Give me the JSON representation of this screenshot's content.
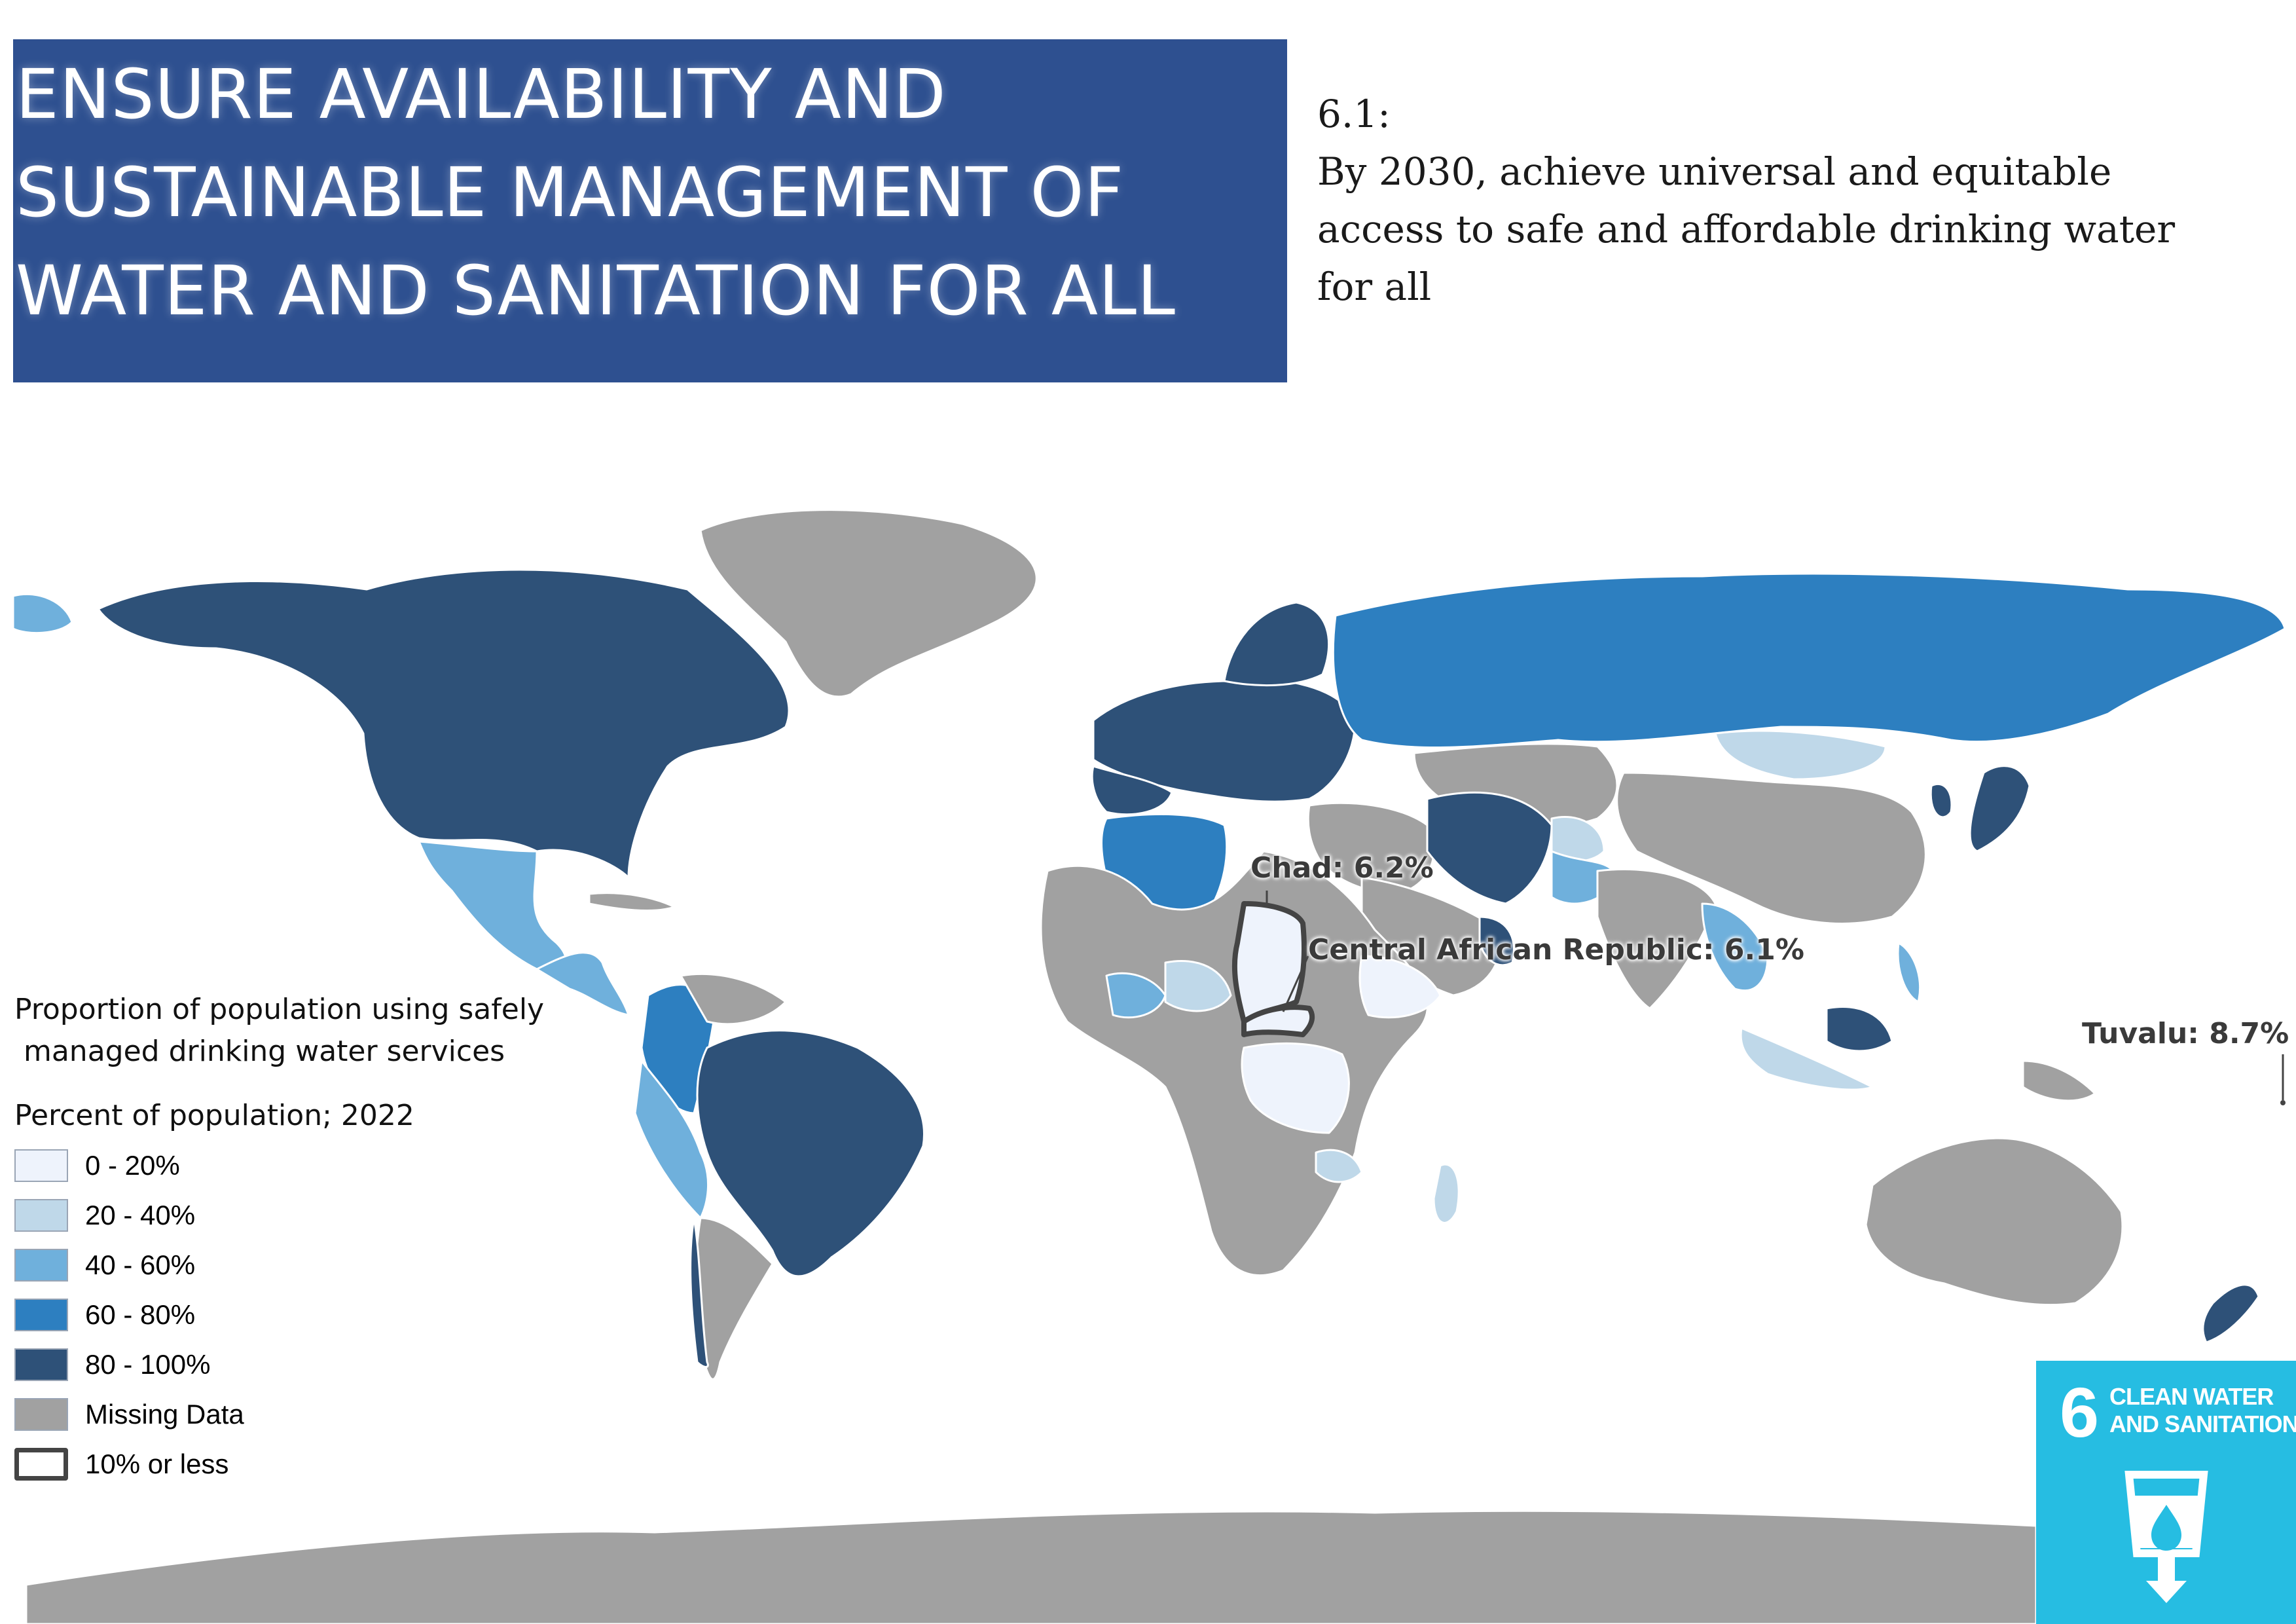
{
  "goal_title": {
    "lines": [
      "ENSURE AVAILABILITY AND",
      "SUSTAINABLE MANAGEMENT OF",
      "WATER AND SANITATION FOR ALL"
    ]
  },
  "target": {
    "code": "6.1:",
    "lines": [
      "By 2030, achieve universal and equitable",
      "access to safe and affordable drinking water",
      "for all"
    ]
  },
  "map_labels": {
    "chad": "Chad: 6.2%",
    "car": "Central African Republic: 6.1%",
    "tuvalu": "Tuvalu: 8.7%"
  },
  "legend": {
    "title_line1": "Proportion of population using safely",
    "title_line2": " managed drinking water services",
    "subtitle": "Percent of population; 2022",
    "items": [
      {
        "label": "0 - 20%",
        "color": "#eef3fc"
      },
      {
        "label": "20 - 40%",
        "color": "#bfd8e9"
      },
      {
        "label": "40 - 60%",
        "color": "#6fb0dc"
      },
      {
        "label": "60 - 80%",
        "color": "#2d7fc0"
      },
      {
        "label": "80 - 100%",
        "color": "#2e5178"
      },
      {
        "label": "Missing Data",
        "color": "#a1a1a1"
      },
      {
        "label": "10% or less",
        "color": "#ffffff",
        "outline": "#444444"
      }
    ]
  },
  "sdg_badge": {
    "number": "6",
    "line1": "CLEAN WATER",
    "line2": "AND SANITATION",
    "color": "#26bde2"
  },
  "colors": {
    "banner": "#2e5090",
    "class_0_20": "#eef3fc",
    "class_20_40": "#bfd8e9",
    "class_40_60": "#6fb0dc",
    "class_60_80": "#2d7fc0",
    "class_80_100": "#2e5178",
    "missing": "#a1a1a1",
    "border": "#ffffff"
  }
}
